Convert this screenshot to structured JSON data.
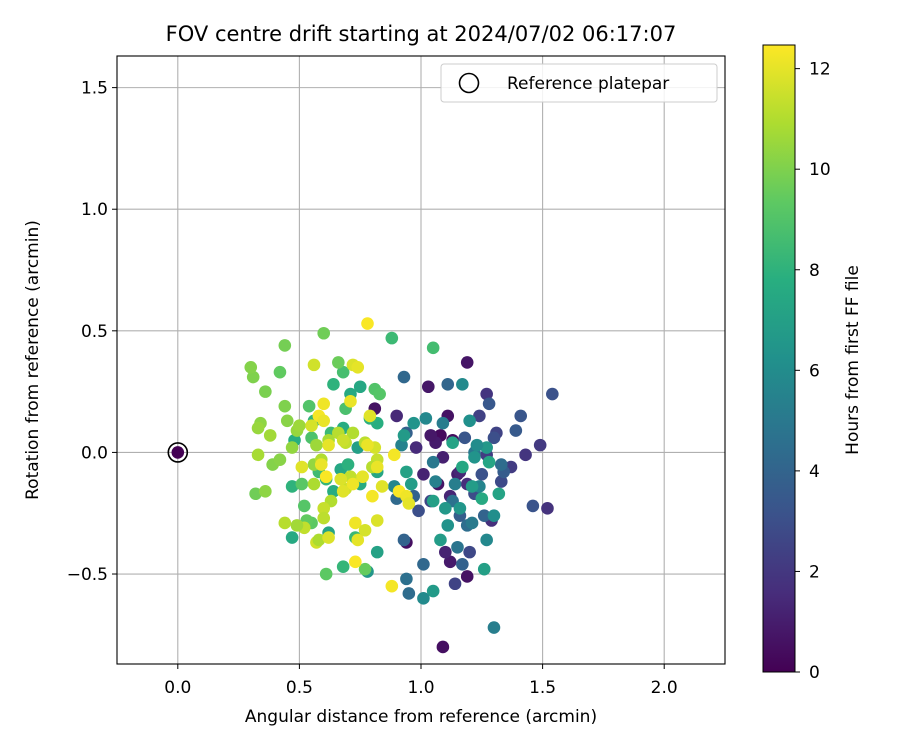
{
  "chart_data": {
    "type": "scatter",
    "title": "FOV centre drift starting at 2024/07/02 06:17:07",
    "xlabel": "Angular distance from reference (arcmin)",
    "ylabel": "Rotation from reference (arcmin)",
    "xlim": [
      -0.25,
      2.25
    ],
    "ylim": [
      -0.87,
      1.63
    ],
    "xticks": [
      0.0,
      0.5,
      1.0,
      1.5,
      2.0
    ],
    "xtick_labels": [
      "0.0",
      "0.5",
      "1.0",
      "1.5",
      "2.0"
    ],
    "yticks": [
      -0.5,
      0.0,
      0.5,
      1.0,
      1.5
    ],
    "ytick_labels": [
      "−0.5",
      "0.0",
      "0.5",
      "1.0",
      "1.5"
    ],
    "grid": true,
    "legend": {
      "position": "top-right",
      "entries": [
        "Reference platepar"
      ]
    },
    "reference_point": {
      "x": 0.0,
      "y": 0.0,
      "label": "Reference platepar"
    },
    "colorbar": {
      "label": "Hours from first FF file",
      "colormap": "viridis",
      "range": [
        0,
        12.47
      ],
      "ticks": [
        0,
        2,
        4,
        6,
        8,
        10,
        12
      ],
      "tick_labels": [
        "0",
        "2",
        "4",
        "6",
        "8",
        "10",
        "12"
      ]
    },
    "series": [
      {
        "columns": [
          "x",
          "y",
          "hours"
        ],
        "points": [
          [
            1.09,
            -0.8,
            0.5
          ],
          [
            1.03,
            0.27,
            0.8
          ],
          [
            1.08,
            0.07,
            0.3
          ],
          [
            1.11,
            0.15,
            0.6
          ],
          [
            1.06,
            0.04,
            0.9
          ],
          [
            1.13,
            0.05,
            0.4
          ],
          [
            1.09,
            -0.02,
            1.1
          ],
          [
            1.07,
            -0.13,
            0.7
          ],
          [
            1.12,
            -0.18,
            1.3
          ],
          [
            1.15,
            -0.09,
            1.0
          ],
          [
            1.19,
            -0.51,
            0.6
          ],
          [
            1.12,
            -0.45,
            0.9
          ],
          [
            1.1,
            -0.41,
            1.2
          ],
          [
            0.94,
            -0.37,
            0.5
          ],
          [
            0.81,
            0.18,
            0.6
          ],
          [
            0.9,
            0.15,
            1.4
          ],
          [
            0.98,
            0.02,
            1.5
          ],
          [
            1.19,
            0.37,
            0.7
          ],
          [
            1.27,
            0.24,
            1.9
          ],
          [
            1.29,
            -0.28,
            1.7
          ],
          [
            1.52,
            -0.23,
            1.8
          ],
          [
            1.49,
            0.03,
            2.1
          ],
          [
            1.43,
            -0.01,
            1.9
          ],
          [
            1.37,
            -0.06,
            2.2
          ],
          [
            1.31,
            0.08,
            2.5
          ],
          [
            1.24,
            0.15,
            2.4
          ],
          [
            1.19,
            -0.13,
            1.6
          ],
          [
            1.16,
            -0.08,
            1.3
          ],
          [
            1.2,
            -0.41,
            2.7
          ],
          [
            1.14,
            -0.54,
            2.5
          ],
          [
            1.22,
            -0.17,
            2.9
          ],
          [
            1.25,
            -0.09,
            3.1
          ],
          [
            1.27,
            -0.01,
            2.2
          ],
          [
            1.18,
            0.06,
            3.3
          ],
          [
            1.04,
            -0.2,
            2.6
          ],
          [
            1.33,
            -0.12,
            2.8
          ],
          [
            1.01,
            -0.09,
            1.2
          ],
          [
            1.04,
            0.07,
            0.8
          ],
          [
            1.54,
            0.24,
            3.1
          ],
          [
            1.46,
            -0.22,
            3.2
          ],
          [
            1.28,
            0.2,
            3.4
          ],
          [
            1.3,
            0.06,
            3.0
          ],
          [
            1.34,
            -0.08,
            3.6
          ],
          [
            1.39,
            0.09,
            3.5
          ],
          [
            1.41,
            0.15,
            3.3
          ],
          [
            1.11,
            0.28,
            4.1
          ],
          [
            0.93,
            0.31,
            4.2
          ],
          [
            0.94,
            0.08,
            3.8
          ],
          [
            0.97,
            -0.18,
            3.9
          ],
          [
            0.99,
            -0.24,
            3.0
          ],
          [
            0.9,
            -0.19,
            4.3
          ],
          [
            0.93,
            -0.36,
            4.0
          ],
          [
            0.95,
            -0.58,
            4.4
          ],
          [
            0.94,
            -0.52,
            4.6
          ],
          [
            1.01,
            -0.46,
            4.2
          ],
          [
            1.16,
            -0.26,
            3.7
          ],
          [
            1.17,
            -0.46,
            3.9
          ],
          [
            1.15,
            -0.39,
            4.8
          ],
          [
            1.19,
            -0.3,
            4.5
          ],
          [
            1.26,
            -0.26,
            4.0
          ],
          [
            1.22,
            0.0,
            4.9
          ],
          [
            1.33,
            -0.05,
            4.4
          ],
          [
            1.3,
            -0.72,
            5.3
          ],
          [
            1.21,
            -0.29,
            5.1
          ],
          [
            1.13,
            -0.2,
            4.7
          ],
          [
            1.05,
            -0.04,
            5.0
          ],
          [
            1.09,
            0.12,
            5.2
          ],
          [
            1.14,
            -0.13,
            5.3
          ],
          [
            0.92,
            0.03,
            5.5
          ],
          [
            0.89,
            -0.14,
            5.7
          ],
          [
            1.06,
            -0.12,
            5.4
          ],
          [
            1.17,
            0.28,
            5.9
          ],
          [
            1.24,
            -0.14,
            5.6
          ],
          [
            1.27,
            -0.36,
            5.8
          ],
          [
            1.3,
            -0.26,
            6.1
          ],
          [
            1.02,
            0.14,
            5.8
          ],
          [
            1.2,
            0.13,
            6.2
          ],
          [
            1.22,
            -0.02,
            6.4
          ],
          [
            1.27,
            0.02,
            6.6
          ],
          [
            1.23,
            0.03,
            6.0
          ],
          [
            1.16,
            -0.23,
            6.5
          ],
          [
            1.11,
            -0.3,
            6.3
          ],
          [
            1.05,
            -0.57,
            6.7
          ],
          [
            1.01,
            -0.6,
            5.9
          ],
          [
            1.08,
            -0.36,
            6.8
          ],
          [
            1.1,
            -0.23,
            6.6
          ],
          [
            0.96,
            -0.13,
            6.9
          ],
          [
            1.05,
            -0.2,
            7.0
          ],
          [
            0.97,
            0.12,
            6.4
          ],
          [
            0.93,
            0.07,
            6.7
          ],
          [
            0.94,
            -0.08,
            7.1
          ],
          [
            1.13,
            0.04,
            7.2
          ],
          [
            1.17,
            -0.06,
            7.4
          ],
          [
            1.21,
            -0.14,
            6.8
          ],
          [
            1.26,
            -0.48,
            7.0
          ],
          [
            1.25,
            -0.19,
            7.5
          ],
          [
            1.28,
            -0.04,
            7.3
          ],
          [
            1.32,
            -0.17,
            7.2
          ],
          [
            0.82,
            -0.08,
            7.3
          ],
          [
            0.75,
            -0.13,
            7.6
          ],
          [
            0.82,
            -0.41,
            7.1
          ],
          [
            0.78,
            -0.49,
            6.5
          ],
          [
            0.62,
            -0.33,
            7.2
          ],
          [
            0.67,
            -0.07,
            7.4
          ],
          [
            0.71,
            0.24,
            7.5
          ],
          [
            0.68,
            0.1,
            7.7
          ],
          [
            0.74,
            0.02,
            7.0
          ],
          [
            0.82,
            0.12,
            7.8
          ],
          [
            0.75,
            0.27,
            7.4
          ],
          [
            0.79,
            0.14,
            7.9
          ],
          [
            0.64,
            0.28,
            8.0
          ],
          [
            0.56,
            0.13,
            8.1
          ],
          [
            0.48,
            0.05,
            7.8
          ],
          [
            0.47,
            -0.14,
            8.0
          ],
          [
            0.47,
            -0.35,
            7.5
          ],
          [
            0.61,
            -0.11,
            8.2
          ],
          [
            0.64,
            -0.16,
            7.7
          ],
          [
            0.7,
            -0.05,
            7.9
          ],
          [
            0.73,
            -0.35,
            8.3
          ],
          [
            0.68,
            -0.47,
            8.2
          ],
          [
            0.88,
            0.47,
            8.4
          ],
          [
            1.05,
            0.43,
            8.6
          ],
          [
            0.68,
            0.33,
            8.7
          ],
          [
            0.63,
            0.08,
            8.4
          ],
          [
            0.69,
            0.18,
            8.8
          ],
          [
            0.81,
            0.26,
            9.0
          ],
          [
            0.83,
            0.24,
            9.1
          ],
          [
            0.54,
            0.19,
            9.0
          ],
          [
            0.55,
            0.06,
            8.9
          ],
          [
            0.58,
            -0.08,
            8.5
          ],
          [
            0.52,
            -0.22,
            9.1
          ],
          [
            0.51,
            -0.13,
            9.2
          ],
          [
            0.55,
            -0.29,
            9.3
          ],
          [
            0.53,
            -0.28,
            9.4
          ],
          [
            0.61,
            -0.5,
            9.3
          ],
          [
            0.77,
            -0.48,
            9.5
          ],
          [
            0.66,
            0.37,
            9.6
          ],
          [
            0.6,
            0.49,
            9.7
          ],
          [
            0.44,
            0.44,
            9.8
          ],
          [
            0.42,
            0.33,
            9.4
          ],
          [
            0.36,
            0.25,
            9.9
          ],
          [
            0.31,
            0.31,
            10.0
          ],
          [
            0.3,
            0.35,
            10.1
          ],
          [
            0.32,
            -0.17,
            9.7
          ],
          [
            0.36,
            -0.16,
            10.3
          ],
          [
            0.39,
            -0.05,
            10.1
          ],
          [
            0.42,
            -0.03,
            10.2
          ],
          [
            0.47,
            0.02,
            10.4
          ],
          [
            0.49,
            0.09,
            10.5
          ],
          [
            0.5,
            0.11,
            10.6
          ],
          [
            0.45,
            0.13,
            10.2
          ],
          [
            0.44,
            0.19,
            10.0
          ],
          [
            0.38,
            0.07,
            10.7
          ],
          [
            0.34,
            0.12,
            10.3
          ],
          [
            0.33,
            0.1,
            10.5
          ],
          [
            0.33,
            -0.01,
            10.8
          ],
          [
            0.56,
            -0.05,
            10.4
          ],
          [
            0.56,
            -0.13,
            10.9
          ],
          [
            0.59,
            -0.03,
            11.0
          ],
          [
            0.57,
            0.03,
            10.6
          ],
          [
            0.62,
            0.05,
            10.8
          ],
          [
            0.66,
            0.08,
            11.1
          ],
          [
            0.69,
            0.04,
            11.3
          ],
          [
            0.72,
            0.08,
            11.0
          ],
          [
            0.77,
            0.04,
            11.2
          ],
          [
            0.82,
            -0.03,
            11.4
          ],
          [
            0.8,
            -0.06,
            11.1
          ],
          [
            0.71,
            -0.1,
            11.3
          ],
          [
            0.69,
            -0.15,
            11.5
          ],
          [
            0.63,
            -0.2,
            11.0
          ],
          [
            0.6,
            -0.23,
            11.4
          ],
          [
            0.6,
            -0.27,
            11.2
          ],
          [
            0.57,
            -0.37,
            11.6
          ],
          [
            0.58,
            -0.36,
            10.9
          ],
          [
            0.52,
            -0.31,
            11.3
          ],
          [
            0.49,
            -0.3,
            10.7
          ],
          [
            0.44,
            -0.29,
            11.1
          ],
          [
            0.78,
            0.53,
            12.4
          ],
          [
            0.72,
            0.36,
            11.8
          ],
          [
            0.74,
            0.35,
            12.0
          ],
          [
            0.79,
            0.15,
            11.9
          ],
          [
            0.81,
            0.02,
            11.7
          ],
          [
            0.71,
            0.21,
            12.1
          ],
          [
            0.6,
            0.2,
            12.2
          ],
          [
            0.58,
            0.15,
            12.3
          ],
          [
            0.62,
            0.03,
            12.0
          ],
          [
            0.59,
            -0.05,
            12.1
          ],
          [
            0.61,
            -0.1,
            12.4
          ],
          [
            0.67,
            -0.11,
            11.8
          ],
          [
            0.72,
            -0.13,
            12.2
          ],
          [
            0.76,
            -0.1,
            12.0
          ],
          [
            0.8,
            -0.18,
            12.3
          ],
          [
            0.82,
            -0.06,
            12.1
          ],
          [
            0.84,
            -0.14,
            11.9
          ],
          [
            0.91,
            -0.16,
            12.4
          ],
          [
            0.94,
            -0.18,
            12.2
          ],
          [
            0.95,
            -0.21,
            12.0
          ],
          [
            0.89,
            -0.01,
            12.3
          ],
          [
            0.78,
            0.03,
            12.1
          ],
          [
            0.73,
            -0.29,
            12.2
          ],
          [
            0.74,
            -0.36,
            12.0
          ],
          [
            0.73,
            -0.45,
            12.4
          ],
          [
            0.88,
            -0.55,
            12.3
          ],
          [
            0.82,
            -0.28,
            11.8
          ],
          [
            0.77,
            -0.32,
            11.7
          ],
          [
            0.68,
            -0.16,
            11.9
          ],
          [
            0.62,
            -0.35,
            11.8
          ],
          [
            0.56,
            0.36,
            11.6
          ],
          [
            0.68,
            0.05,
            11.5
          ],
          [
            0.51,
            -0.06,
            11.9
          ],
          [
            0.55,
            0.11,
            11.7
          ],
          [
            0.6,
            0.13,
            12.1
          ]
        ]
      }
    ]
  }
}
